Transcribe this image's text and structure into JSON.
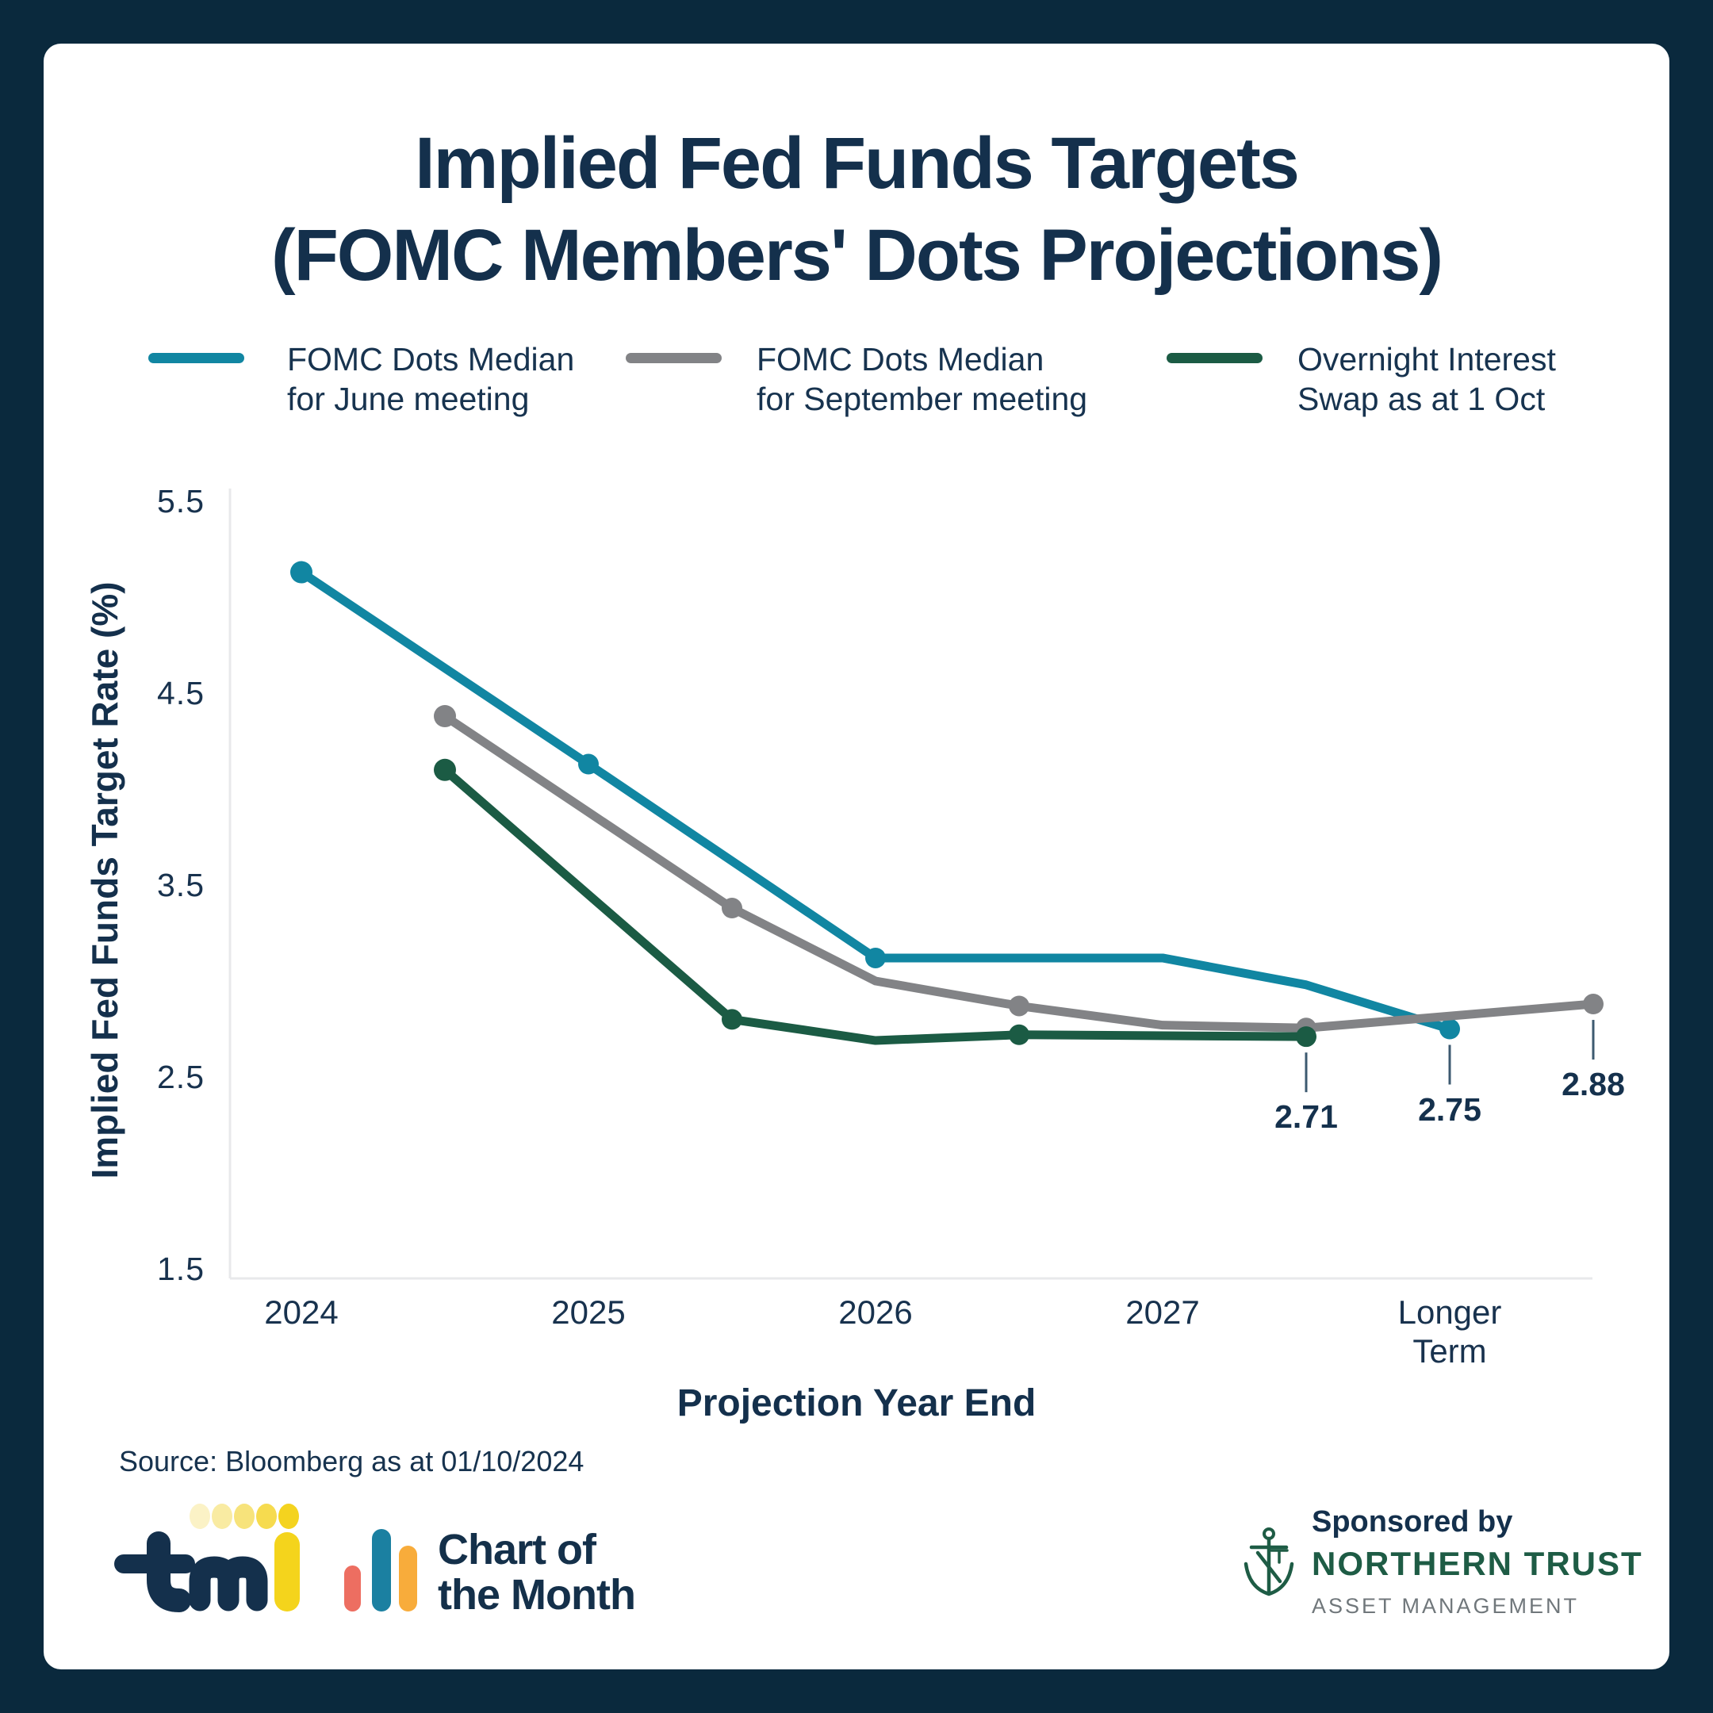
{
  "title": {
    "line1": "Implied Fed Funds Targets",
    "line2": "(FOMC Members' Dots Projections)"
  },
  "legend": {
    "items": [
      {
        "line1": "FOMC Dots Median",
        "line2": "for June meeting",
        "color": "#1186A2"
      },
      {
        "line1": "FOMC Dots Median",
        "line2": "for September meeting",
        "color": "#828386"
      },
      {
        "line1": "Overnight Interest",
        "line2": "Swap as at 1 Oct",
        "color": "#1B5B44"
      }
    ]
  },
  "chart_data": {
    "type": "line",
    "title": "Implied Fed Funds Targets (FOMC Members' Dots Projections)",
    "xlabel": "Projection Year End",
    "ylabel": "Implied Fed Funds Target Rate (%)",
    "x_tick_labels": [
      "2024",
      "2025",
      "2026",
      "2027",
      "Longer Term"
    ],
    "y_ticks": [
      "5.5",
      "4.5",
      "3.5",
      "2.5",
      "1.5"
    ],
    "ylim": [
      1.5,
      5.5
    ],
    "grid": false,
    "legend_position": "top",
    "series": [
      {
        "name": "FOMC Dots Median for June meeting",
        "color": "#1186A2",
        "points": [
          {
            "x": 0,
            "y": 5.13,
            "marker": true
          },
          {
            "x": 1,
            "y": 4.13,
            "marker": true
          },
          {
            "x": 2,
            "y": 3.12,
            "marker": true
          },
          {
            "x": 3,
            "y": 3.12,
            "marker": false
          },
          {
            "x": 3.5,
            "y": 2.98,
            "marker": false
          },
          {
            "x": 4,
            "y": 2.75,
            "marker": true
          }
        ]
      },
      {
        "name": "FOMC Dots Median for September meeting",
        "color": "#828386",
        "points": [
          {
            "x": 0.5,
            "y": 4.38,
            "marker": true
          },
          {
            "x": 1.5,
            "y": 3.38,
            "marker": true
          },
          {
            "x": 2.0,
            "y": 3.0,
            "marker": false
          },
          {
            "x": 2.5,
            "y": 2.87,
            "marker": true
          },
          {
            "x": 3.0,
            "y": 2.77,
            "marker": false
          },
          {
            "x": 3.5,
            "y": 2.755,
            "marker": true
          },
          {
            "x": 4.5,
            "y": 2.88,
            "marker": true
          }
        ]
      },
      {
        "name": "Overnight Interest Swap as at 1 Oct",
        "color": "#1B5B44",
        "points": [
          {
            "x": 0.5,
            "y": 4.1,
            "marker": true
          },
          {
            "x": 1.5,
            "y": 2.8,
            "marker": true
          },
          {
            "x": 2.0,
            "y": 2.69,
            "marker": false
          },
          {
            "x": 2.5,
            "y": 2.72,
            "marker": true
          },
          {
            "x": 3.5,
            "y": 2.71,
            "marker": true
          }
        ]
      }
    ],
    "annotations": [
      {
        "text": "2.71",
        "x": 3.5,
        "y": 2.71
      },
      {
        "text": "2.75",
        "x": 4,
        "y": 2.75
      },
      {
        "text": "2.88",
        "x": 4.5,
        "y": 2.88
      }
    ]
  },
  "source": "Source: Bloomberg as at 01/10/2024",
  "footer": {
    "tmi_alt": "tmi",
    "chart_of_the_month": {
      "line1": "Chart of",
      "line2": "the Month"
    },
    "sponsored_by": "Sponsored by",
    "brand": "NORTHERN TRUST",
    "brand_sub": "ASSET MANAGEMENT"
  },
  "colors": {
    "frame": "#0A293D",
    "navy": "#14304C",
    "axis_line": "#E8E9EB",
    "leader": "#3D5A70",
    "tmi_yellow": "#F4D41C",
    "tmi_dots": [
      "#FBF2C6",
      "#F9EBA2",
      "#F7E37B",
      "#F6DB4F",
      "#F4D31F"
    ],
    "com_bars": [
      "#ED6E61",
      "#1B80A1",
      "#F8AC3B"
    ],
    "nt_green": "#1E5C45"
  }
}
